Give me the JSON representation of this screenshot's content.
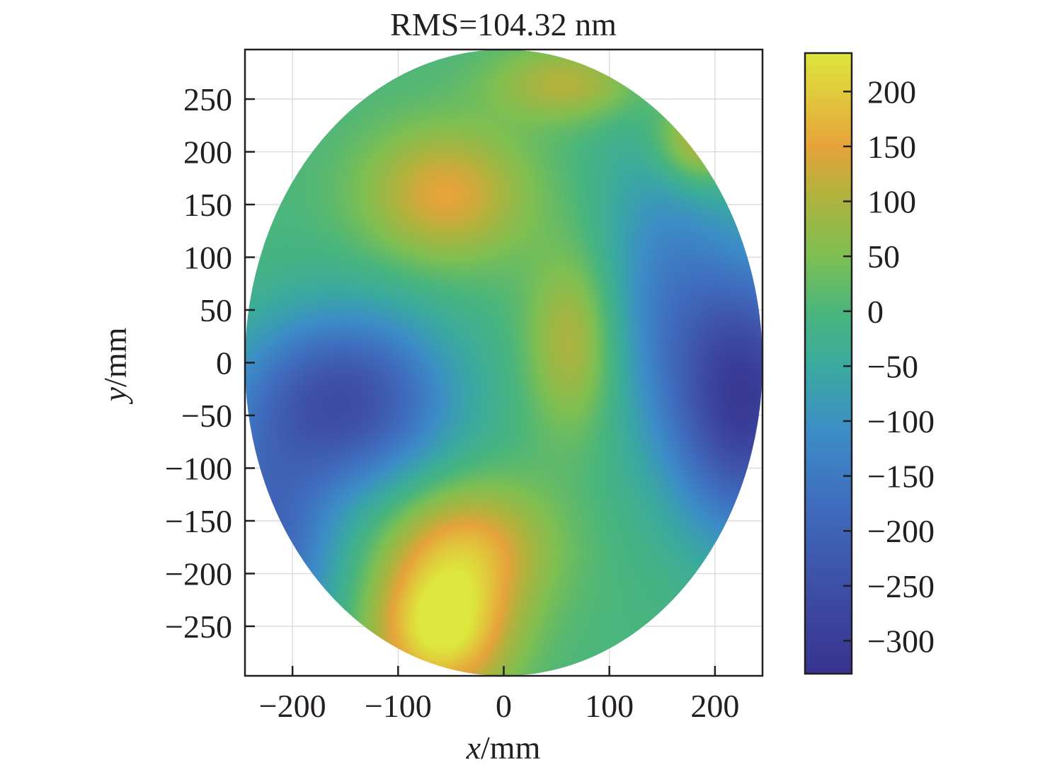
{
  "chart_data": {
    "type": "heatmap",
    "title": "RMS=104.32 nm",
    "xlabel_var": "x",
    "xlabel_unit": "/mm",
    "ylabel_var": "y",
    "ylabel_unit": "/mm",
    "xlim": [
      -245,
      245
    ],
    "ylim": [
      -297,
      297
    ],
    "x_ticks": [
      -200,
      -100,
      0,
      100,
      200
    ],
    "x_tick_labels": [
      "−200",
      "−100",
      "0",
      "100",
      "200"
    ],
    "y_ticks": [
      250,
      200,
      150,
      100,
      50,
      0,
      -50,
      -100,
      -150,
      -200,
      -250
    ],
    "y_tick_labels": [
      "250",
      "200",
      "150",
      "100",
      "50",
      "0",
      "−50",
      "−100",
      "−150",
      "−200",
      "−250"
    ],
    "grid": true,
    "aperture": {
      "shape": "ellipse",
      "center": [
        0,
        0
      ],
      "semi_axis_x": 245,
      "semi_axis_y": 297
    },
    "colorbar": {
      "range": [
        -330,
        235
      ],
      "ticks": [
        200,
        150,
        100,
        50,
        0,
        -50,
        -100,
        -150,
        -200,
        -250,
        -300
      ],
      "tick_labels": [
        "200",
        "150",
        "100",
        "50",
        "0",
        "−50",
        "−100",
        "−150",
        "−200",
        "−250",
        "−300"
      ],
      "colormap": [
        {
          "value": -330,
          "color": "#36338f"
        },
        {
          "value": -250,
          "color": "#3e4fa6"
        },
        {
          "value": -170,
          "color": "#3f6fbf"
        },
        {
          "value": -110,
          "color": "#3c8dc7"
        },
        {
          "value": -50,
          "color": "#3aaa9f"
        },
        {
          "value": 0,
          "color": "#4ab57c"
        },
        {
          "value": 50,
          "color": "#7ebf52"
        },
        {
          "value": 110,
          "color": "#b5b13c"
        },
        {
          "value": 150,
          "color": "#e6a33b"
        },
        {
          "value": 235,
          "color": "#dde63c"
        }
      ]
    },
    "surface_features": [
      {
        "kind": "peak",
        "x": -55,
        "y": 160,
        "value": 150,
        "sx": 55,
        "sy": 45
      },
      {
        "kind": "peak",
        "x": -60,
        "y": -255,
        "value": 235,
        "sx": 45,
        "sy": 45
      },
      {
        "kind": "peak",
        "x": -35,
        "y": -175,
        "value": 160,
        "sx": 55,
        "sy": 45
      },
      {
        "kind": "peak",
        "x": 65,
        "y": 20,
        "value": 115,
        "sx": 30,
        "sy": 60
      },
      {
        "kind": "peak",
        "x": 60,
        "y": 265,
        "value": 110,
        "sx": 50,
        "sy": 25
      },
      {
        "kind": "peak",
        "x": 185,
        "y": 210,
        "value": 150,
        "sx": 30,
        "sy": 30
      },
      {
        "kind": "valley",
        "x": -150,
        "y": -35,
        "value": -250,
        "sx": 70,
        "sy": 60
      },
      {
        "kind": "valley",
        "x": -230,
        "y": -180,
        "value": -195,
        "sx": 50,
        "sy": 80
      },
      {
        "kind": "valley",
        "x": 230,
        "y": -35,
        "value": -300,
        "sx": 50,
        "sy": 90
      },
      {
        "kind": "valley",
        "x": 150,
        "y": 80,
        "value": -110,
        "sx": 45,
        "sy": 110
      }
    ]
  }
}
